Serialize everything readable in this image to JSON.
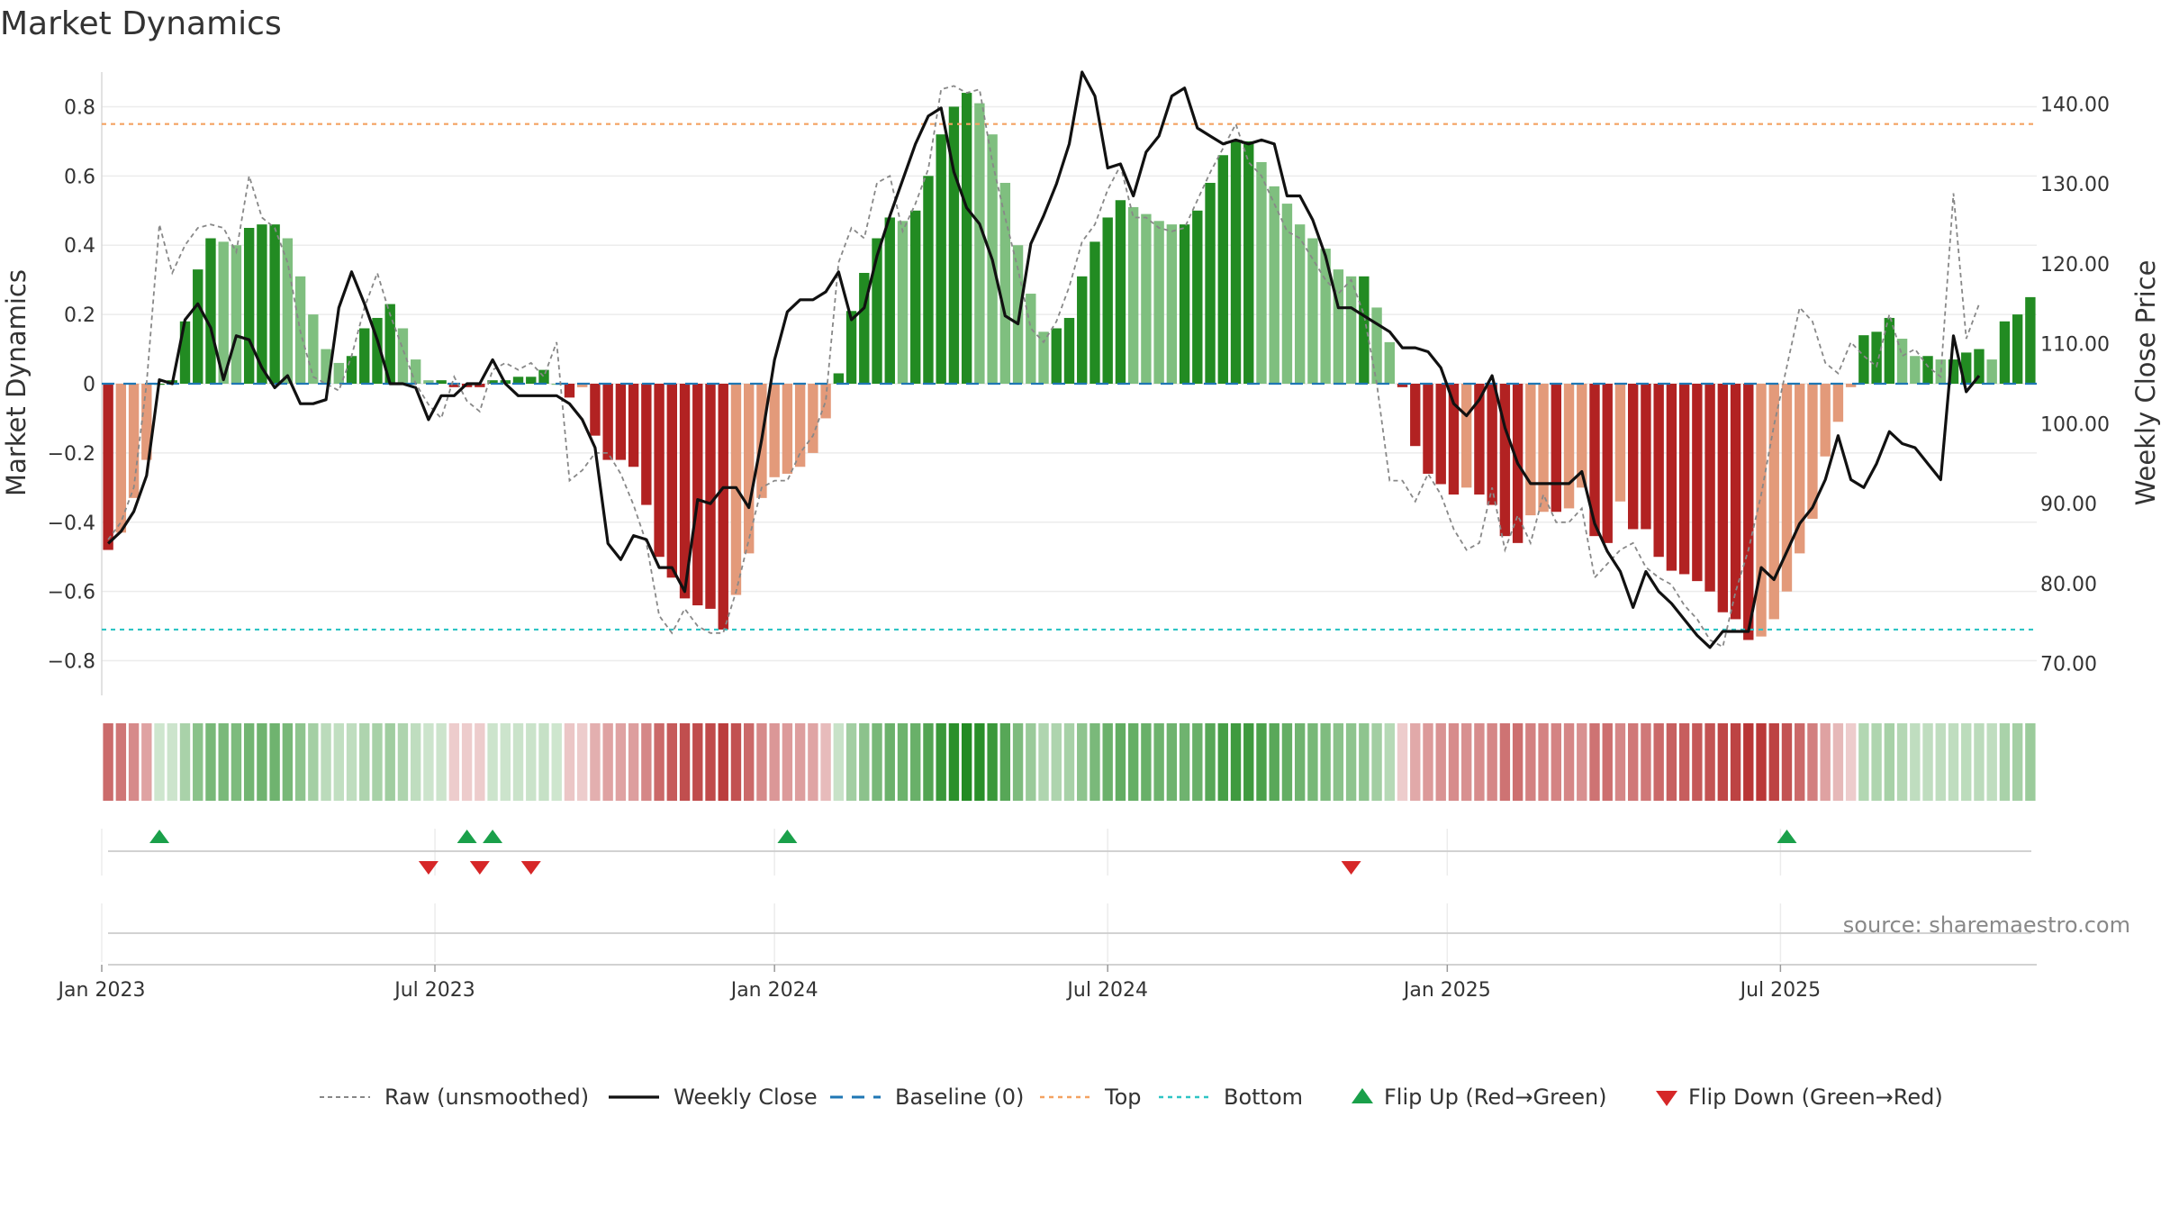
{
  "chart_data": {
    "type": "bar",
    "title": "Market Dynamics",
    "ylabel_left": "Market Dynamics",
    "ylabel_right": "Weekly Close Price",
    "ylim_left": [
      -0.9,
      0.9
    ],
    "ylim_right": [
      66,
      144
    ],
    "yticks_left": [
      "0.8",
      "0.6",
      "0.4",
      "0.2",
      "0",
      "−0.2",
      "−0.4",
      "−0.6",
      "−0.8"
    ],
    "yticks_left_values": [
      0.8,
      0.6,
      0.4,
      0.2,
      0,
      -0.2,
      -0.4,
      -0.6,
      -0.8
    ],
    "yticks_right": [
      "140.00",
      "130.00",
      "120.00",
      "110.00",
      "100.00",
      "90.00",
      "80.00",
      "70.00"
    ],
    "yticks_right_values": [
      140,
      130,
      120,
      110,
      100,
      90,
      80,
      70
    ],
    "x_tick_labels": [
      "Jan 2023",
      "Jul 2023",
      "Jan 2024",
      "Jul 2024",
      "Jan 2025",
      "Jul 2025"
    ],
    "x_tick_weeks": [
      0,
      26,
      52.5,
      78.5,
      105,
      131
    ],
    "week0": "2023-01-02",
    "top_threshold": 0.75,
    "bottom_threshold": -0.71,
    "smoothed": [
      -0.48,
      -0.43,
      -0.33,
      -0.22,
      0.0,
      0.01,
      0.18,
      0.33,
      0.42,
      0.41,
      0.4,
      0.45,
      0.46,
      0.46,
      0.42,
      0.31,
      0.2,
      0.1,
      0.06,
      0.08,
      0.16,
      0.19,
      0.23,
      0.16,
      0.07,
      0.01,
      0.01,
      -0.01,
      -0.01,
      -0.01,
      0.01,
      0.01,
      0.02,
      0.02,
      0.04,
      0.0,
      -0.04,
      -0.01,
      -0.15,
      -0.22,
      -0.22,
      -0.24,
      -0.35,
      -0.5,
      -0.56,
      -0.62,
      -0.64,
      -0.65,
      -0.71,
      -0.61,
      -0.49,
      -0.33,
      -0.27,
      -0.26,
      -0.24,
      -0.2,
      -0.1,
      0.03,
      0.21,
      0.32,
      0.42,
      0.48,
      0.47,
      0.5,
      0.6,
      0.72,
      0.8,
      0.84,
      0.81,
      0.72,
      0.58,
      0.4,
      0.26,
      0.15,
      0.16,
      0.19,
      0.31,
      0.41,
      0.48,
      0.53,
      0.51,
      0.49,
      0.47,
      0.46,
      0.46,
      0.5,
      0.58,
      0.66,
      0.7,
      0.7,
      0.64,
      0.57,
      0.52,
      0.46,
      0.42,
      0.39,
      0.33,
      0.31,
      0.31,
      0.22,
      0.12,
      -0.01,
      -0.18,
      -0.26,
      -0.29,
      -0.32,
      -0.3,
      -0.32,
      -0.35,
      -0.44,
      -0.46,
      -0.38,
      -0.37,
      -0.37,
      -0.36,
      -0.3,
      -0.44,
      -0.46,
      -0.34,
      -0.42,
      -0.42,
      -0.5,
      -0.54,
      -0.55,
      -0.57,
      -0.6,
      -0.66,
      -0.68,
      -0.74,
      -0.73,
      -0.68,
      -0.6,
      -0.49,
      -0.39,
      -0.21,
      -0.11,
      -0.01,
      0.14,
      0.15,
      0.19,
      0.13,
      0.08,
      0.08,
      0.07,
      0.07,
      0.09,
      0.1,
      0.07,
      0.18,
      0.2,
      0.25
    ],
    "raw": [
      -0.45,
      -0.4,
      -0.3,
      0.0,
      0.46,
      0.32,
      0.4,
      0.45,
      0.46,
      0.45,
      0.38,
      0.6,
      0.48,
      0.45,
      0.35,
      0.15,
      0.02,
      0.0,
      -0.02,
      0.08,
      0.22,
      0.32,
      0.2,
      0.1,
      0.0,
      -0.06,
      -0.1,
      0.02,
      -0.05,
      -0.08,
      0.04,
      0.06,
      0.04,
      0.06,
      0.02,
      0.12,
      -0.28,
      -0.25,
      -0.2,
      -0.2,
      -0.26,
      -0.35,
      -0.46,
      -0.67,
      -0.72,
      -0.65,
      -0.7,
      -0.72,
      -0.72,
      -0.6,
      -0.45,
      -0.3,
      -0.28,
      -0.28,
      -0.2,
      -0.15,
      -0.05,
      0.35,
      0.45,
      0.42,
      0.58,
      0.6,
      0.44,
      0.52,
      0.62,
      0.85,
      0.86,
      0.84,
      0.85,
      0.64,
      0.48,
      0.33,
      0.16,
      0.12,
      0.18,
      0.28,
      0.41,
      0.46,
      0.56,
      0.63,
      0.48,
      0.48,
      0.45,
      0.44,
      0.45,
      0.53,
      0.61,
      0.68,
      0.75,
      0.64,
      0.6,
      0.52,
      0.44,
      0.42,
      0.36,
      0.3,
      0.26,
      0.3,
      0.2,
      0.0,
      -0.28,
      -0.28,
      -0.34,
      -0.26,
      -0.32,
      -0.42,
      -0.48,
      -0.46,
      -0.3,
      -0.48,
      -0.38,
      -0.46,
      -0.32,
      -0.4,
      -0.4,
      -0.36,
      -0.56,
      -0.52,
      -0.48,
      -0.46,
      -0.53,
      -0.56,
      -0.58,
      -0.64,
      -0.68,
      -0.74,
      -0.76,
      -0.6,
      -0.48,
      -0.32,
      -0.12,
      0.05,
      0.22,
      0.18,
      0.06,
      0.03,
      0.12,
      0.08,
      0.05,
      0.2,
      0.08,
      0.1,
      0.05,
      0.02,
      0.55,
      0.13,
      0.23
    ],
    "close": [
      85,
      86.5,
      89,
      93.5,
      105.5,
      105,
      113,
      115,
      112,
      105.5,
      111,
      110.5,
      107,
      104.5,
      106,
      102.5,
      102.5,
      103,
      114.5,
      119,
      115,
      110.5,
      105,
      105,
      104.5,
      100.5,
      103.5,
      103.5,
      105,
      105,
      108,
      105,
      103.5,
      103.5,
      103.5,
      103.5,
      102.5,
      100.5,
      97,
      85,
      83,
      86,
      85.5,
      82,
      82,
      79,
      90.5,
      90,
      92,
      92,
      89.5,
      98,
      108,
      114,
      115.5,
      115.5,
      116.5,
      119,
      113,
      114.5,
      121,
      126,
      130.5,
      135,
      138.5,
      139.5,
      131.5,
      127,
      125,
      120.5,
      113.5,
      112.5,
      122.5,
      126,
      130,
      135,
      144,
      141,
      132,
      132.5,
      128.5,
      134,
      136,
      141,
      142,
      137,
      136,
      135,
      135.5,
      135,
      135.5,
      135,
      128.5,
      128.5,
      125.5,
      121,
      114.5,
      114.5,
      113.5,
      112.5,
      111.5,
      109.5,
      109.5,
      109,
      107,
      102.5,
      101,
      103,
      106,
      99.5,
      95,
      92.5,
      92.5,
      92.5,
      92.5,
      94,
      87.5,
      84,
      81.5,
      77,
      81.5,
      79,
      77.5,
      75.5,
      73.5,
      72,
      74,
      74,
      74,
      82,
      80.5,
      84,
      87.5,
      89.5,
      93,
      98.5,
      93,
      92,
      95,
      99,
      97.5,
      97,
      95,
      93,
      111,
      104,
      106
    ],
    "flip_up_weeks": [
      4,
      28,
      30,
      53,
      131
    ],
    "flip_down_weeks": [
      25,
      29,
      33,
      97
    ]
  },
  "legend": [
    {
      "label": "Raw (unsmoothed)",
      "kind": "raw-line"
    },
    {
      "label": "Weekly Close",
      "kind": "close-line"
    },
    {
      "label": "Baseline (0)",
      "kind": "baseline-line"
    },
    {
      "label": "Top",
      "kind": "top-line"
    },
    {
      "label": "Bottom",
      "kind": "bottom-line"
    },
    {
      "label": "Flip Up (Red→Green)",
      "kind": "flip-up"
    },
    {
      "label": "Flip Down (Green→Red)",
      "kind": "flip-down"
    }
  ],
  "source": "source: sharemaestro.com",
  "colors": {
    "pos_strong": "#228b22",
    "pos_light": "#7fbf7f",
    "neg_strong": "#b22222",
    "neg_light": "#e39a7a",
    "raw": "#888888",
    "close": "#111111",
    "baseline": "#1f77b4",
    "top": "#f4a261",
    "bottom": "#2ec4c4",
    "flip_up": "#1aa04a",
    "flip_down": "#d62728"
  }
}
